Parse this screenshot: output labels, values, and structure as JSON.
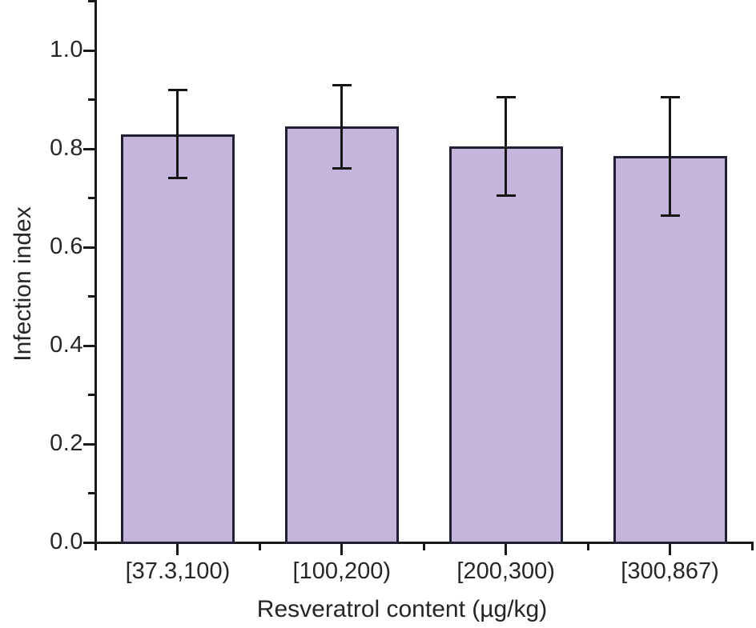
{
  "chart_data": {
    "type": "bar",
    "title": "",
    "categories": [
      "[37.3,100)",
      "[100,200)",
      "[200,300)",
      "[300,867)"
    ],
    "values": [
      0.83,
      0.845,
      0.805,
      0.785
    ],
    "errors": [
      0.09,
      0.085,
      0.1,
      0.12
    ],
    "xlabel": "Resveratrol content (µg/kg)",
    "ylabel": "Infection index",
    "ylim": [
      0,
      1.1
    ],
    "yticks_major": [
      0.0,
      0.2,
      0.4,
      0.6,
      0.8,
      1.0
    ],
    "yticks_minor": [
      0.1,
      0.3,
      0.5,
      0.7,
      0.9,
      1.1
    ],
    "ytick_decimals": 1,
    "grid": false,
    "legend": null,
    "colors": {
      "bar_fill": "#c5b4db",
      "bar_edge": "#201f33",
      "error_bar": "#161616",
      "axis": "#1a1a1a",
      "text": "#262626"
    }
  }
}
